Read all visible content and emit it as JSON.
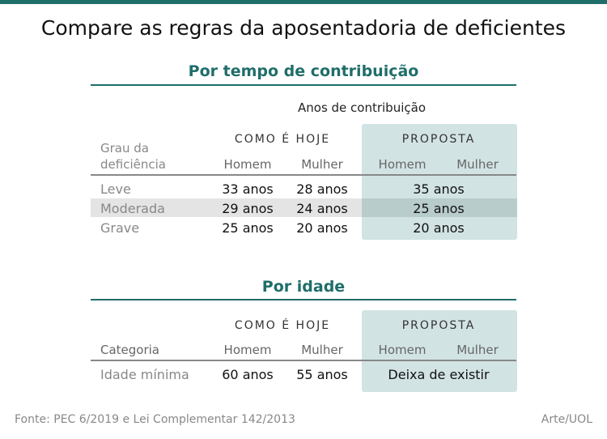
{
  "title": "Compare as regras da aposentadoria de deficientes",
  "section1": {
    "heading": "Por tempo de contribuição",
    "subheading": "Anos de contribuição",
    "group_today": "COMO É HOJE",
    "group_proposal": "PROPOSTA",
    "row_header_line1": "Grau da",
    "row_header_line2": "deficiência",
    "cols": [
      "Homem",
      "Mulher",
      "Homem",
      "Mulher"
    ],
    "rows": [
      {
        "label": "Leve",
        "homem": "33 anos",
        "mulher": "28 anos",
        "proposta": "35 anos"
      },
      {
        "label": "Moderada",
        "homem": "29 anos",
        "mulher": "24 anos",
        "proposta": "25 anos"
      },
      {
        "label": "Grave",
        "homem": "25 anos",
        "mulher": "20 anos",
        "proposta": "20 anos"
      }
    ]
  },
  "section2": {
    "heading": "Por idade",
    "group_today": "COMO É HOJE",
    "group_proposal": "PROPOSTA",
    "row_header": "Categoria",
    "cols": [
      "Homem",
      "Mulher",
      "Homem",
      "Mulher"
    ],
    "rows": [
      {
        "label": "Idade mínima",
        "homem": "60 anos",
        "mulher": "55 anos",
        "proposta": "Deixa de existir"
      }
    ]
  },
  "footer": {
    "source": "Fonte: PEC 6/2019 e Lei Complementar 142/2013",
    "credit": "Arte/UOL"
  }
}
